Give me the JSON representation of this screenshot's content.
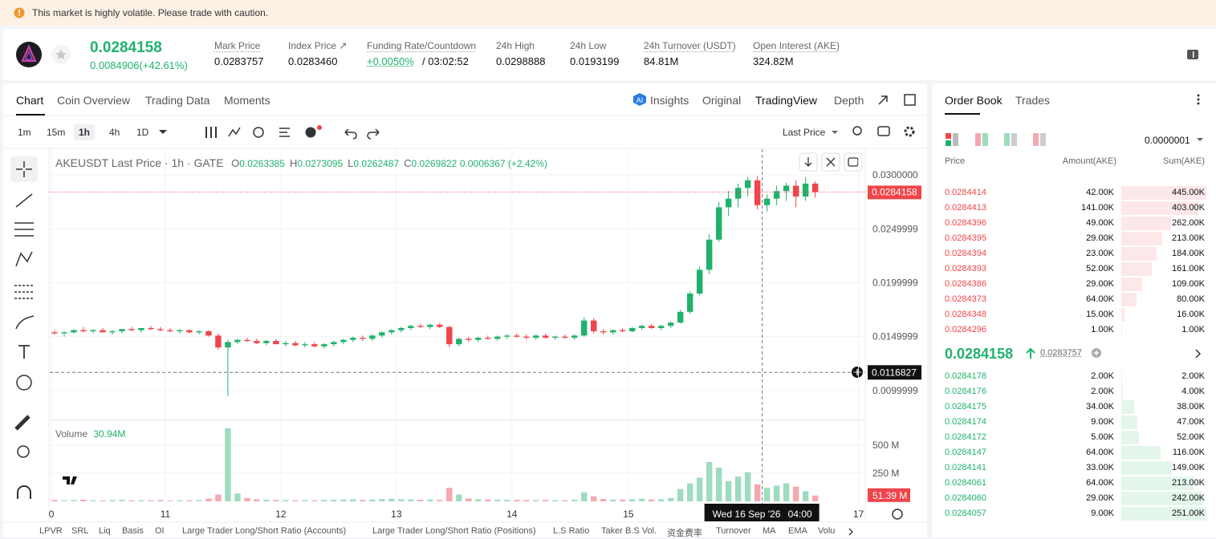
{
  "banner": {
    "text": "This market is highly volatile. Please trade with caution."
  },
  "ticker": {
    "price": "0.0284158",
    "change": "0.0084906(+42.61%)",
    "stats": [
      {
        "label": "Mark Price",
        "value": "0.0283757"
      },
      {
        "label": "Index Price ↗",
        "value": "0.0283460"
      },
      {
        "label": "Funding Rate/Countdown",
        "value": "+0.0050%",
        "extra": "/ 03:02:52"
      },
      {
        "label": "24h High",
        "value": "0.0298888"
      },
      {
        "label": "24h Low",
        "value": "0.0193199"
      },
      {
        "label": "24h Turnover (USDT)",
        "value": "84.81M"
      },
      {
        "label": "Open Interest (AKE)",
        "value": "324.82M"
      }
    ]
  },
  "chart_tabs": [
    "Chart",
    "Coin Overview",
    "Trading Data",
    "Moments"
  ],
  "view_tabs": [
    "Insights",
    "Original",
    "TradingView",
    "Depth"
  ],
  "timeframes": [
    "1m",
    "15m",
    "1h",
    "4h",
    "1D"
  ],
  "price_source": "Last Price",
  "legend": {
    "symbol": "AKEUSDT Last Price · 1h · GATE",
    "ohlc": [
      {
        "key": "O",
        "value": "0.0263385"
      },
      {
        "key": "H",
        "value": "0.0273095"
      },
      {
        "key": "L",
        "value": "0.0262487"
      },
      {
        "key": "C",
        "value": "0.0269822"
      }
    ],
    "change": "0.0006367 (+2.42%)"
  },
  "chart": {
    "type": "candlestick",
    "colors": {
      "up": "#20b26c",
      "down": "#ef454a",
      "up_volume": "#9fdcbf",
      "down_volume": "#f5a8ae"
    },
    "xlim": [
      -0.5,
      84.2
    ],
    "xticks": [
      {
        "value": -0.33,
        "label": "0"
      },
      {
        "value": 11.5,
        "label": "11"
      },
      {
        "value": 23.5,
        "label": "12"
      },
      {
        "value": 35.5,
        "label": "13"
      },
      {
        "value": 47.5,
        "label": "14"
      },
      {
        "value": 59.6,
        "label": "15"
      },
      {
        "value": 83.5,
        "label": "17"
      }
    ],
    "ylim": [
      0.00739,
      0.03239
    ],
    "yticks": [
      {
        "value": 0.03,
        "label": "0.0300000"
      },
      0.0249999,
      0.0199999,
      0.0149999,
      0.0099999
    ],
    "candles": [
      [
        0.0154,
        0.0156,
        0.0152,
        0.0153
      ],
      [
        0.0153,
        0.0155,
        0.015,
        0.0154
      ],
      [
        0.0154,
        0.0157,
        0.0153,
        0.0156
      ],
      [
        0.0156,
        0.0159,
        0.0154,
        0.0155
      ],
      [
        0.0155,
        0.0157,
        0.0153,
        0.0156
      ],
      [
        0.0156,
        0.0158,
        0.0154,
        0.0154
      ],
      [
        0.0154,
        0.0156,
        0.0152,
        0.0155
      ],
      [
        0.0155,
        0.0157,
        0.0153,
        0.0157
      ],
      [
        0.0157,
        0.0159,
        0.0155,
        0.0156
      ],
      [
        0.0156,
        0.0158,
        0.0154,
        0.0158
      ],
      [
        0.0158,
        0.016,
        0.0156,
        0.0157
      ],
      [
        0.0157,
        0.0159,
        0.0155,
        0.0156
      ],
      [
        0.0156,
        0.0158,
        0.0154,
        0.0155
      ],
      [
        0.0155,
        0.0157,
        0.0153,
        0.0156
      ],
      [
        0.0156,
        0.0157,
        0.0153,
        0.0154
      ],
      [
        0.0154,
        0.0156,
        0.0152,
        0.0155
      ],
      [
        0.0155,
        0.0156,
        0.015,
        0.0151
      ],
      [
        0.0151,
        0.0153,
        0.0138,
        0.014
      ],
      [
        0.014,
        0.0147,
        0.0095,
        0.0145
      ],
      [
        0.0145,
        0.0148,
        0.0143,
        0.0147
      ],
      [
        0.0147,
        0.0149,
        0.0145,
        0.0146
      ],
      [
        0.0146,
        0.0148,
        0.0143,
        0.0144
      ],
      [
        0.0144,
        0.0147,
        0.0142,
        0.0146
      ],
      [
        0.0146,
        0.0148,
        0.0143,
        0.0143
      ],
      [
        0.0143,
        0.0146,
        0.0141,
        0.0144
      ],
      [
        0.0144,
        0.0146,
        0.0141,
        0.0142
      ],
      [
        0.0142,
        0.0145,
        0.014,
        0.0143
      ],
      [
        0.0143,
        0.0145,
        0.014,
        0.0141
      ],
      [
        0.0141,
        0.0144,
        0.0139,
        0.0143
      ],
      [
        0.0143,
        0.0146,
        0.0141,
        0.0145
      ],
      [
        0.0145,
        0.0148,
        0.0143,
        0.0147
      ],
      [
        0.0147,
        0.015,
        0.0145,
        0.0149
      ],
      [
        0.0149,
        0.0151,
        0.0146,
        0.0148
      ],
      [
        0.0148,
        0.0152,
        0.0146,
        0.0151
      ],
      [
        0.0151,
        0.0155,
        0.0149,
        0.0154
      ],
      [
        0.0154,
        0.0157,
        0.0152,
        0.0156
      ],
      [
        0.0156,
        0.0159,
        0.0154,
        0.0158
      ],
      [
        0.0158,
        0.0161,
        0.0156,
        0.016
      ],
      [
        0.016,
        0.0162,
        0.0158,
        0.0159
      ],
      [
        0.0159,
        0.0162,
        0.0157,
        0.0161
      ],
      [
        0.0161,
        0.0163,
        0.0158,
        0.0159
      ],
      [
        0.0159,
        0.016,
        0.014,
        0.0143
      ],
      [
        0.0143,
        0.0149,
        0.0141,
        0.0148
      ],
      [
        0.0148,
        0.015,
        0.0145,
        0.0147
      ],
      [
        0.0147,
        0.015,
        0.0145,
        0.0149
      ],
      [
        0.0149,
        0.0151,
        0.0147,
        0.0148
      ],
      [
        0.0148,
        0.0151,
        0.0146,
        0.015
      ],
      [
        0.015,
        0.0152,
        0.0148,
        0.0151
      ],
      [
        0.0151,
        0.0153,
        0.0149,
        0.015
      ],
      [
        0.015,
        0.0152,
        0.0147,
        0.0149
      ],
      [
        0.0149,
        0.0152,
        0.0147,
        0.0151
      ],
      [
        0.0151,
        0.0153,
        0.0148,
        0.0149
      ],
      [
        0.0149,
        0.0151,
        0.0147,
        0.015
      ],
      [
        0.015,
        0.0152,
        0.0148,
        0.0149
      ],
      [
        0.0149,
        0.0152,
        0.0147,
        0.0151
      ],
      [
        0.0151,
        0.0168,
        0.015,
        0.0165
      ],
      [
        0.0165,
        0.0167,
        0.0153,
        0.0155
      ],
      [
        0.0155,
        0.0157,
        0.0152,
        0.0154
      ],
      [
        0.0154,
        0.0157,
        0.0152,
        0.0156
      ],
      [
        0.0156,
        0.0158,
        0.0154,
        0.0155
      ],
      [
        0.0155,
        0.0159,
        0.0154,
        0.0158
      ],
      [
        0.0158,
        0.0161,
        0.0156,
        0.016
      ],
      [
        0.016,
        0.0162,
        0.0157,
        0.0158
      ],
      [
        0.0158,
        0.0161,
        0.0156,
        0.016
      ],
      [
        0.016,
        0.0164,
        0.0158,
        0.0163
      ],
      [
        0.0163,
        0.0175,
        0.0162,
        0.0173
      ],
      [
        0.0173,
        0.0192,
        0.0171,
        0.019
      ],
      [
        0.019,
        0.0215,
        0.0188,
        0.0212
      ],
      [
        0.0212,
        0.0245,
        0.0208,
        0.024
      ],
      [
        0.024,
        0.0275,
        0.0238,
        0.027
      ],
      [
        0.027,
        0.0285,
        0.0262,
        0.0278
      ],
      [
        0.0278,
        0.0292,
        0.027,
        0.0288
      ],
      [
        0.0288,
        0.0298,
        0.028,
        0.0295
      ],
      [
        0.0295,
        0.0299,
        0.0268,
        0.0272
      ],
      [
        0.0272,
        0.0282,
        0.0266,
        0.0278
      ],
      [
        0.0278,
        0.029,
        0.0272,
        0.0285
      ],
      [
        0.0285,
        0.0293,
        0.0276,
        0.029
      ],
      [
        0.029,
        0.0295,
        0.027,
        0.028
      ],
      [
        0.028,
        0.0298,
        0.0276,
        0.0292
      ],
      [
        0.0292,
        0.0294,
        0.0279,
        0.0284158
      ]
    ],
    "current_price": 0.0284158,
    "crosshair": {
      "x": 73.5,
      "price": 0.0116827,
      "date": "Wed 16 Sep '26",
      "time": "04:00"
    },
    "volume": {
      "label": "Volume",
      "value": "30.94M",
      "tag": "51.39 M",
      "ylim": [
        0,
        693
      ],
      "yticks": [
        {
          "value": 500,
          "label": "500 M"
        },
        {
          "value": 250,
          "label": "250 M"
        }
      ],
      "values": [
        12,
        8,
        10,
        14,
        9,
        7,
        11,
        13,
        8,
        10,
        9,
        12,
        7,
        9,
        8,
        10,
        25,
        60,
        650,
        70,
        30,
        18,
        14,
        12,
        11,
        9,
        10,
        8,
        12,
        14,
        16,
        18,
        13,
        15,
        20,
        22,
        18,
        16,
        14,
        15,
        12,
        120,
        60,
        25,
        18,
        15,
        14,
        12,
        13,
        11,
        10,
        12,
        11,
        9,
        14,
        80,
        45,
        20,
        15,
        14,
        18,
        22,
        16,
        19,
        30,
        110,
        160,
        210,
        350,
        300,
        180,
        220,
        260,
        150,
        120,
        140,
        160,
        130,
        90,
        51.39
      ]
    }
  },
  "tools_bottom": [
    "LPVR",
    "SRL",
    "Liq",
    "Basis",
    "OI",
    "Large Trader Long/Short Ratio (Accounts)",
    "Large Trader Long/Short Ratio (Positions)",
    "L.S Ratio",
    "Taker B.S Vol.",
    "资金费率",
    "Turnover",
    "MA",
    "EMA",
    "Volu"
  ],
  "order_book": {
    "tabs": [
      "Order Book",
      "Trades"
    ],
    "precision": "0.0000001",
    "columns": [
      "Price",
      "Amount(AKE)",
      "Sum(AKE)"
    ],
    "asks": [
      {
        "price": "0.0284414",
        "amount": "42.00K",
        "sum": {
          "value": 445000,
          "label": "445.00K"
        }
      },
      {
        "price": "0.0284413",
        "amount": "141.00K",
        "sum": {
          "value": 403000,
          "label": "403.00K"
        }
      },
      {
        "price": "0.0284396",
        "amount": "49.00K",
        "sum": {
          "value": 262000,
          "label": "262.00K"
        }
      },
      {
        "price": "0.0284395",
        "amount": "29.00K",
        "sum": {
          "value": 213000,
          "label": "213.00K"
        }
      },
      {
        "price": "0.0284394",
        "amount": "23.00K",
        "sum": {
          "value": 184000,
          "label": "184.00K"
        }
      },
      {
        "price": "0.0284393",
        "amount": "52.00K",
        "sum": {
          "value": 161000,
          "label": "161.00K"
        }
      },
      {
        "price": "0.0284386",
        "amount": "29.00K",
        "sum": {
          "value": 109000,
          "label": "109.00K"
        }
      },
      {
        "price": "0.0284373",
        "amount": "64.00K",
        "sum": {
          "value": 80000,
          "label": "80.00K"
        }
      },
      {
        "price": "0.0284348",
        "amount": "15.00K",
        "sum": {
          "value": 16000,
          "label": "16.00K"
        }
      },
      {
        "price": "0.0284296",
        "amount": "1.00K",
        "sum": {
          "value": 1000,
          "label": "1.00K"
        }
      }
    ],
    "mid_price": "0.0284158",
    "mid_mark": "0.0283757",
    "bids": [
      {
        "price": "0.0284178",
        "amount": "2.00K",
        "sum": {
          "value": 2000,
          "label": "2.00K"
        }
      },
      {
        "price": "0.0284176",
        "amount": "2.00K",
        "sum": {
          "value": 4000,
          "label": "4.00K"
        }
      },
      {
        "price": "0.0284175",
        "amount": "34.00K",
        "sum": {
          "value": 38000,
          "label": "38.00K"
        }
      },
      {
        "price": "0.0284174",
        "amount": "9.00K",
        "sum": {
          "value": 47000,
          "label": "47.00K"
        }
      },
      {
        "price": "0.0284172",
        "amount": "5.00K",
        "sum": {
          "value": 52000,
          "label": "52.00K"
        }
      },
      {
        "price": "0.0284147",
        "amount": "64.00K",
        "sum": {
          "value": 116000,
          "label": "116.00K"
        }
      },
      {
        "price": "0.0284141",
        "amount": "33.00K",
        "sum": {
          "value": 149000,
          "label": "149.00K"
        }
      },
      {
        "price": "0.0284061",
        "amount": "64.00K",
        "sum": {
          "value": 213000,
          "label": "213.00K"
        }
      },
      {
        "price": "0.0284060",
        "amount": "29.00K",
        "sum": {
          "value": 242000,
          "label": "242.00K"
        }
      },
      {
        "price": "0.0284057",
        "amount": "9.00K",
        "sum": {
          "value": 251000,
          "label": "251.00K"
        }
      }
    ]
  }
}
